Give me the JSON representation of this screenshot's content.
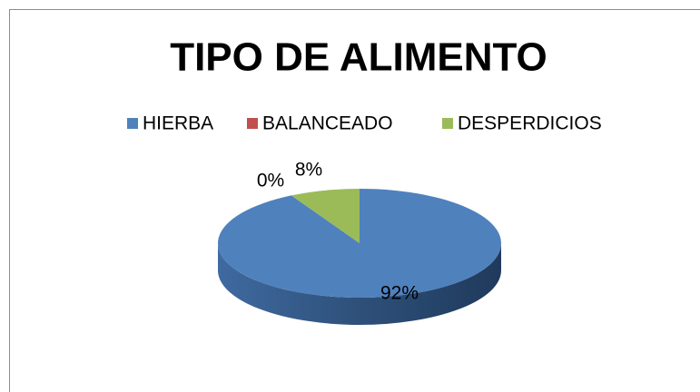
{
  "chart_data": {
    "type": "pie",
    "title": "TIPO DE ALIMENTO",
    "categories": [
      "HIERBA",
      "BALANCEADO",
      "DESPERDICIOS"
    ],
    "values": [
      92,
      0,
      8
    ],
    "value_labels": [
      "92%",
      "0%",
      "8%"
    ],
    "colors": [
      "#4f81bd",
      "#c0504d",
      "#9bbb59"
    ],
    "legend": "top"
  }
}
